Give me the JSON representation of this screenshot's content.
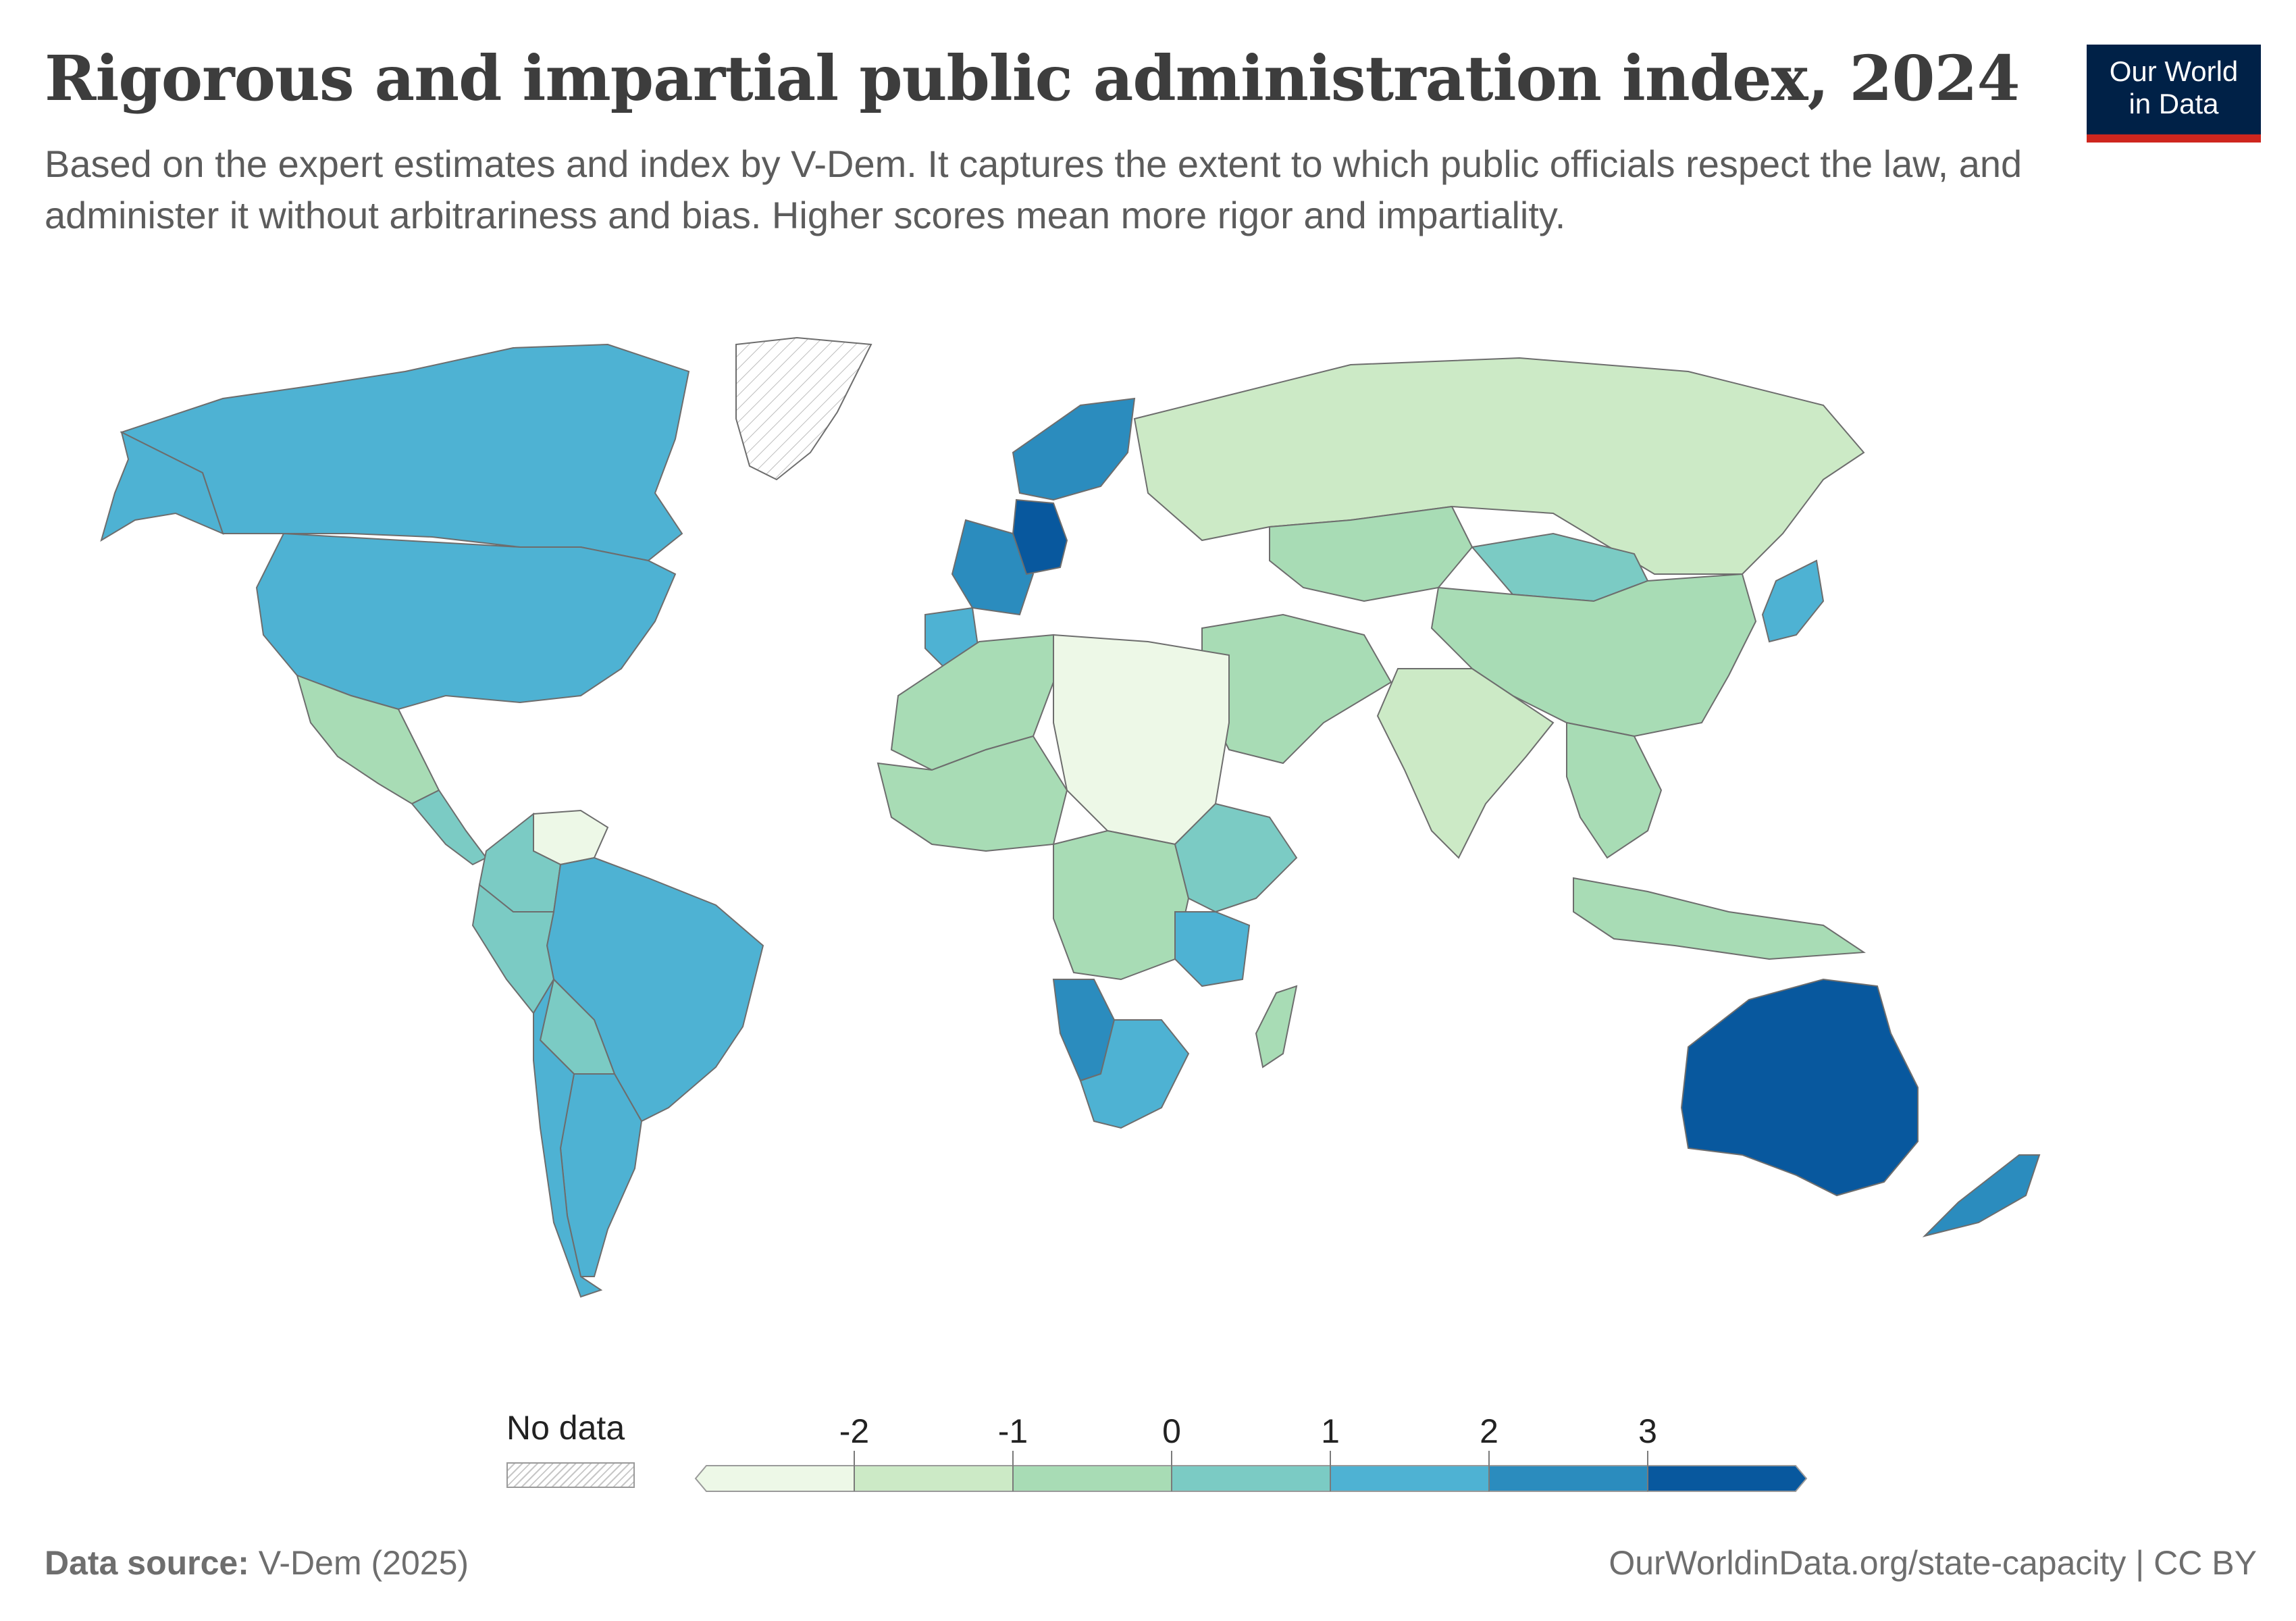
{
  "title": "Rigorous and impartial public administration index, 2024",
  "subtitle": "Based on the expert estimates and index by V-Dem. It captures the extent to which public officials respect the law, and administer it without arbitrariness and bias. Higher scores mean more rigor and impartiality.",
  "logo": {
    "line1": "Our World",
    "line2": "in Data"
  },
  "legend": {
    "no_data_label": "No data",
    "ticks": [
      "-2",
      "-1",
      "0",
      "1",
      "2",
      "3"
    ],
    "bins": [
      {
        "from": null,
        "to": -2,
        "color": "#edf8e7"
      },
      {
        "from": -2,
        "to": -1,
        "color": "#cceac6"
      },
      {
        "from": -1,
        "to": 0,
        "color": "#a8dcb5"
      },
      {
        "from": 0,
        "to": 1,
        "color": "#7bcbc4"
      },
      {
        "from": 1,
        "to": 2,
        "color": "#4eb2d3"
      },
      {
        "from": 2,
        "to": 3,
        "color": "#2b8cbe"
      },
      {
        "from": 3,
        "to": null,
        "color": "#08589e"
      }
    ]
  },
  "map_data": {
    "type": "choropleth",
    "no_data_color": "#ffffff",
    "regions": [
      {
        "name": "Canada",
        "color": "#4eb2d3"
      },
      {
        "name": "United States",
        "color": "#4eb2d3"
      },
      {
        "name": "Alaska",
        "color": "#4eb2d3"
      },
      {
        "name": "Greenland",
        "color": "nodata"
      },
      {
        "name": "Mexico",
        "color": "#a8dcb5"
      },
      {
        "name": "Central America",
        "color": "#7bcbc4"
      },
      {
        "name": "Venezuela",
        "color": "#edf8e7"
      },
      {
        "name": "Colombia",
        "color": "#7bcbc4"
      },
      {
        "name": "Brazil",
        "color": "#4eb2d3"
      },
      {
        "name": "Peru",
        "color": "#7bcbc4"
      },
      {
        "name": "Bolivia",
        "color": "#7bcbc4"
      },
      {
        "name": "Argentina",
        "color": "#4eb2d3"
      },
      {
        "name": "Chile",
        "color": "#4eb2d3"
      },
      {
        "name": "Western Europe",
        "color": "#2b8cbe"
      },
      {
        "name": "Germany",
        "color": "#08589e"
      },
      {
        "name": "Scandinavia",
        "color": "#2b8cbe"
      },
      {
        "name": "Iberia",
        "color": "#4eb2d3"
      },
      {
        "name": "Russia",
        "color": "#cceac6"
      },
      {
        "name": "Kazakhstan",
        "color": "#a8dcb5"
      },
      {
        "name": "Mongolia",
        "color": "#7bcbc4"
      },
      {
        "name": "China",
        "color": "#a8dcb5"
      },
      {
        "name": "India",
        "color": "#cceac6"
      },
      {
        "name": "Middle East",
        "color": "#a8dcb5"
      },
      {
        "name": "Southeast Asia",
        "color": "#a8dcb5"
      },
      {
        "name": "Japan",
        "color": "#4eb2d3"
      },
      {
        "name": "Indonesia",
        "color": "#a8dcb5"
      },
      {
        "name": "Australia",
        "color": "#08589e"
      },
      {
        "name": "New Zealand",
        "color": "#2b8cbe"
      },
      {
        "name": "North Africa",
        "color": "#a8dcb5"
      },
      {
        "name": "Libya / Egypt / Sudan",
        "color": "#edf8e7"
      },
      {
        "name": "West Africa",
        "color": "#a8dcb5"
      },
      {
        "name": "Central Africa",
        "color": "#a8dcb5"
      },
      {
        "name": "East Africa",
        "color": "#7bcbc4"
      },
      {
        "name": "Tanzania",
        "color": "#4eb2d3"
      },
      {
        "name": "Namibia",
        "color": "#2b8cbe"
      },
      {
        "name": "South Africa",
        "color": "#4eb2d3"
      },
      {
        "name": "Madagascar",
        "color": "#a8dcb5"
      }
    ]
  },
  "footer": {
    "source_label": "Data source:",
    "source_value": "V-Dem (2025)",
    "right": "OurWorldinData.org/state-capacity | CC BY"
  }
}
